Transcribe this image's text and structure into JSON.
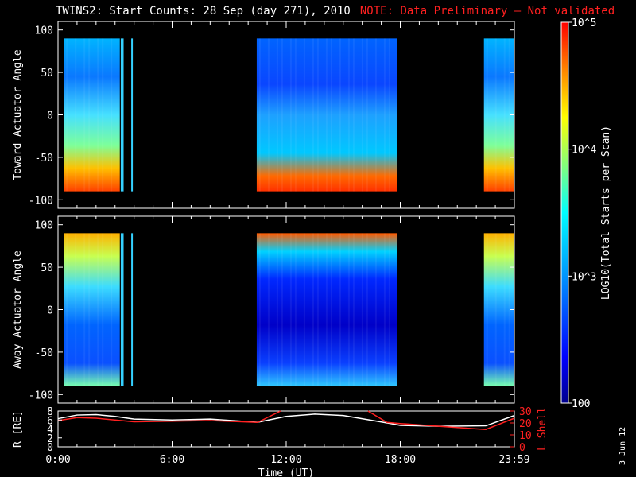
{
  "title": "TWINS2: Start Counts: 28 Sep (day 271), 2010",
  "note": "NOTE: Data Preliminary – Not validated",
  "date_stamp": "3 Jun 12",
  "chart_data": [
    {
      "type": "heatmap",
      "name": "top",
      "ylabel": "Toward Actuator Angle",
      "xlim_hours": [
        0,
        24
      ],
      "ylim": [
        -110,
        110
      ],
      "yticks": [
        100,
        50,
        0,
        -50,
        -100
      ],
      "data_range": [
        -90,
        90
      ],
      "segments_hours": [
        [
          0.3,
          3.25
        ],
        [
          3.3,
          3.45
        ],
        [
          3.85,
          3.92
        ],
        [
          10.45,
          17.85
        ],
        [
          22.4,
          24
        ]
      ],
      "colorbar": {
        "label": "LOG10(Total Starts per Scan)",
        "scale": "log",
        "range": [
          100,
          100000
        ],
        "tick_labels": [
          "100",
          "10^3",
          "10^4",
          "10^5"
        ]
      }
    },
    {
      "type": "heatmap",
      "name": "bottom",
      "ylabel": "Away Actuator Angle",
      "xlim_hours": [
        0,
        24
      ],
      "ylim": [
        -110,
        110
      ],
      "yticks": [
        100,
        50,
        0,
        -50,
        -100
      ],
      "data_range": [
        -90,
        90
      ],
      "segments_hours": [
        [
          0.3,
          3.25
        ],
        [
          3.3,
          3.45
        ],
        [
          3.85,
          3.92
        ],
        [
          10.45,
          17.85
        ],
        [
          22.4,
          24
        ]
      ]
    },
    {
      "type": "line",
      "name": "orbit",
      "xlabel": "Time (UT)",
      "xlim_hours": [
        0,
        24
      ],
      "xtick_labels": [
        "0:00",
        "6:00",
        "12:00",
        "18:00",
        "23:59"
      ],
      "xtick_hours": [
        0,
        6,
        12,
        18,
        24
      ],
      "left_axis": {
        "label": "R [RE]",
        "ylim": [
          0,
          8
        ],
        "yticks": [
          0,
          2,
          4,
          6,
          8
        ]
      },
      "right_axis": {
        "label": "L Shell",
        "ylim": [
          0,
          30
        ],
        "yticks": [
          0,
          10,
          20,
          30
        ],
        "color": "#ff2020"
      },
      "series": [
        {
          "color": "#ffffff",
          "axis": "left",
          "x": [
            0,
            1,
            2,
            3,
            4,
            6,
            8,
            10.5,
            12,
            13.5,
            15,
            17.5,
            18,
            20,
            22.5,
            24
          ],
          "y": [
            6.3,
            7.1,
            7.2,
            6.8,
            6.2,
            6.0,
            6.2,
            5.5,
            6.8,
            7.3,
            7.0,
            5.2,
            4.8,
            4.6,
            4.7,
            7.0
          ]
        },
        {
          "color": "#ff2020",
          "axis": "right",
          "x": [
            0,
            1,
            2,
            4,
            6,
            8,
            10.5,
            11.7
          ],
          "y": [
            22,
            24.5,
            24.0,
            21.0,
            21.5,
            22.0,
            20.5,
            30
          ]
        },
        {
          "color": "#ff2020",
          "axis": "right",
          "x": [
            16.3,
            17.3,
            18,
            22.5,
            24
          ],
          "y": [
            30,
            20.5,
            19.5,
            14.5,
            24.0
          ]
        }
      ]
    }
  ]
}
